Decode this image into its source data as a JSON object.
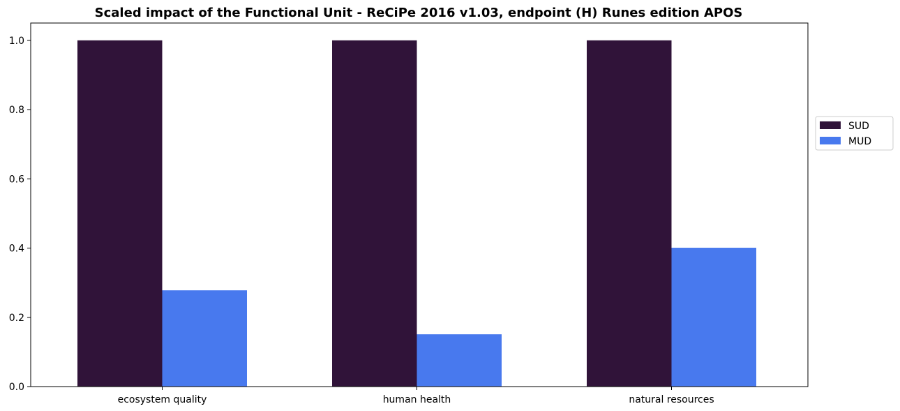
{
  "chart_data": {
    "type": "bar",
    "title": "Scaled impact of the Functional Unit - ReCiPe 2016 v1.03, endpoint (H) Runes edition APOS",
    "xlabel": "",
    "ylabel": "",
    "categories": [
      "ecosystem quality",
      "human health",
      "natural resources"
    ],
    "series": [
      {
        "name": "SUD",
        "color": "#301339",
        "values": [
          1.0,
          1.0,
          1.0
        ]
      },
      {
        "name": "MUD",
        "color": "#4879ee",
        "values": [
          0.278,
          0.151,
          0.401
        ]
      }
    ],
    "ylim": [
      0,
      1.05
    ],
    "yticks": [
      0.0,
      0.2,
      0.4,
      0.6,
      0.8,
      1.0
    ],
    "ytick_labels": [
      "0.0",
      "0.2",
      "0.4",
      "0.6",
      "0.8",
      "1.0"
    ],
    "grid": false,
    "legend_position": "right"
  }
}
